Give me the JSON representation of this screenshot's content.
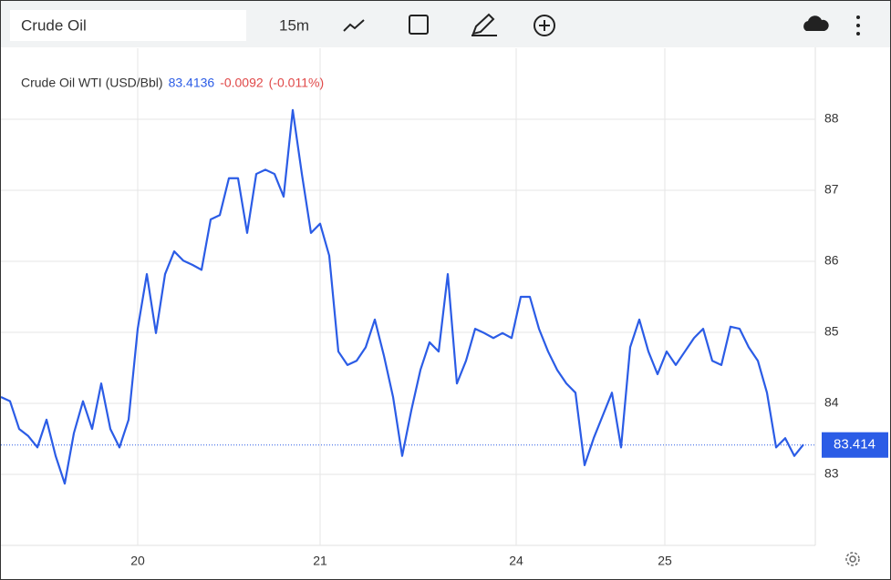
{
  "header": {
    "symbol": "Crude Oil",
    "interval": "15m"
  },
  "chart_data": {
    "type": "line",
    "title": "Crude Oil WTI (USD/Bbl)",
    "last_price": "83.4136",
    "change": "-0.0092",
    "change_pct": "(-0.011%)",
    "color": "#2b5ce6",
    "values": [
      84.09,
      84.03,
      83.64,
      83.54,
      83.38,
      83.77,
      83.26,
      82.87,
      83.58,
      84.03,
      83.64,
      84.28,
      83.64,
      83.38,
      83.77,
      85.05,
      85.82,
      84.99,
      85.82,
      86.14,
      86.01,
      85.95,
      85.88,
      86.59,
      86.65,
      87.17,
      87.17,
      86.4,
      87.23,
      87.29,
      87.23,
      86.91,
      88.13,
      87.23,
      86.4,
      86.53,
      86.08,
      84.73,
      84.54,
      84.6,
      84.79,
      85.18,
      84.67,
      84.09,
      83.26,
      83.9,
      84.47,
      84.86,
      84.73,
      85.82,
      84.28,
      84.6,
      85.05,
      84.99,
      84.92,
      84.99,
      84.92,
      85.5,
      85.5,
      85.05,
      84.73,
      84.47,
      84.28,
      84.15,
      83.13,
      83.51,
      83.83,
      84.15,
      83.38,
      84.79,
      85.18,
      84.73,
      84.41,
      84.73,
      84.54,
      84.73,
      84.92,
      85.05,
      84.6,
      84.54,
      85.08,
      85.05,
      84.79,
      84.6,
      84.15,
      83.38,
      83.51,
      83.26,
      83.42
    ],
    "xlim": [
      0,
      89.3
    ],
    "xticks": [
      {
        "value": 15,
        "label": "20"
      },
      {
        "value": 35,
        "label": "21"
      },
      {
        "value": 56.5,
        "label": "24"
      },
      {
        "value": 72.8,
        "label": "25"
      }
    ],
    "ylim": [
      82,
      89
    ],
    "yticks": [
      83,
      84,
      85,
      86,
      87,
      88
    ],
    "grid": true,
    "price_line": 83.414
  }
}
